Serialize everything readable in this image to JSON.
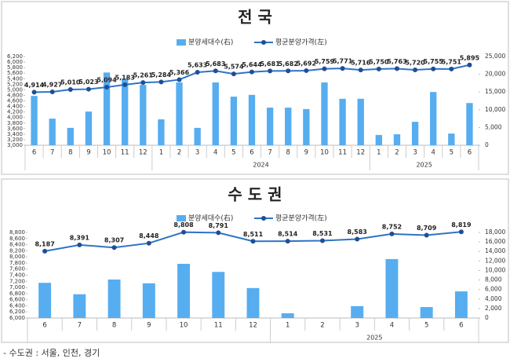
{
  "chart_data": [
    {
      "type": "combo",
      "title": "전 국",
      "categories": [
        "6",
        "7",
        "8",
        "9",
        "10",
        "11",
        "12",
        "1",
        "2",
        "3",
        "4",
        "5",
        "6",
        "7",
        "8",
        "9",
        "10",
        "11",
        "12",
        "1",
        "2",
        "3",
        "4",
        "5",
        "6"
      ],
      "x_group": [
        null,
        null,
        null,
        null,
        null,
        null,
        null,
        "2024",
        "2024",
        "2024",
        "2024",
        "2024",
        "2024",
        "2024",
        "2024",
        "2024",
        "2024",
        "2024",
        "2024",
        "2025",
        "2025",
        "2025",
        "2025",
        "2025",
        "2025"
      ],
      "series": [
        {
          "name": "분양세대수(右)",
          "type": "bar",
          "axis": "y2",
          "color": "#56adf0",
          "values": [
            13900,
            7500,
            4900,
            9500,
            20500,
            18800,
            17000,
            7300,
            17700,
            4900,
            17700,
            13700,
            14200,
            10600,
            10600,
            10200,
            17700,
            13100,
            13100,
            2900,
            3100,
            6600,
            15000,
            3300,
            11900
          ]
        },
        {
          "name": "평균분양가격(左)",
          "type": "line",
          "color": "#2e74c6",
          "marker_color": "#1f4e96",
          "values": [
            4914,
            4927,
            5010,
            5023,
            5094,
            5183,
            5261,
            5284,
            5366,
            5633,
            5683,
            5574,
            5644,
            5681,
            5682,
            5692,
            5759,
            5771,
            5716,
            5750,
            5763,
            5720,
            5755,
            5751,
            5895
          ],
          "value_labels": [
            "4,914",
            "4,927",
            "5,010",
            "5,023",
            "5,094",
            "5,183",
            "5,261",
            "5,284",
            "5,366",
            "5,633",
            "5,683",
            "5,574",
            "5,644",
            "5,681",
            "5,682",
            "5,692",
            "5,759",
            "5,771",
            "5,716",
            "5,750",
            "5,763",
            "5,720",
            "5,755",
            "5,751",
            "5,895"
          ]
        }
      ],
      "ylim": [
        3000,
        6200
      ],
      "yticks": [
        {
          "value": 3000,
          "label": "3,000"
        },
        {
          "value": 3200,
          "label": "3,200"
        },
        {
          "value": 3400,
          "label": "3,400"
        },
        {
          "value": 3600,
          "label": "3,600"
        },
        {
          "value": 3800,
          "label": "3,800"
        },
        {
          "value": 4000,
          "label": "4,000"
        },
        {
          "value": 4200,
          "label": "4,200"
        },
        {
          "value": 4400,
          "label": "4,400"
        },
        {
          "value": 4600,
          "label": "4,600"
        },
        {
          "value": 4800,
          "label": "4,800"
        },
        {
          "value": 5000,
          "label": "5,000"
        },
        {
          "value": 5200,
          "label": "5,200"
        },
        {
          "value": 5400,
          "label": "5,400"
        },
        {
          "value": 5600,
          "label": "5,600"
        },
        {
          "value": 5800,
          "label": "5,800"
        },
        {
          "value": 6000,
          "label": "6,000"
        },
        {
          "value": 6200,
          "label": "6,200"
        }
      ],
      "y2lim": [
        0,
        25000
      ],
      "y2ticks": [
        0,
        {
          "value": 5000,
          "label": "5,000"
        },
        {
          "value": 10000,
          "label": "10,000"
        },
        {
          "value": 15000,
          "label": "15,000"
        },
        {
          "value": 20000,
          "label": "20,000"
        },
        {
          "value": 25000,
          "label": "25,000"
        }
      ]
    },
    {
      "type": "combo",
      "title": "수 도 권",
      "categories": [
        "6",
        "7",
        "8",
        "9",
        "10",
        "11",
        "12",
        "1",
        "2",
        "3",
        "4",
        "5",
        "6"
      ],
      "x_group": [
        null,
        null,
        null,
        null,
        null,
        null,
        null,
        "2025",
        "2025",
        "2025",
        "2025",
        "2025",
        "2025"
      ],
      "series": [
        {
          "name": "분양세대수(右)",
          "type": "bar",
          "axis": "y2",
          "color": "#56adf0",
          "values": [
            7400,
            5000,
            8100,
            7300,
            11400,
            9700,
            6300,
            1000,
            0,
            2500,
            12400,
            2300,
            5600
          ]
        },
        {
          "name": "평균분양가격(左)",
          "type": "line",
          "color": "#2e74c6",
          "marker_color": "#1f4e96",
          "values": [
            8187,
            8391,
            8307,
            8448,
            8808,
            8791,
            8511,
            8514,
            8531,
            8583,
            8752,
            8709,
            8819
          ],
          "value_labels": [
            "8,187",
            "8,391",
            "8,307",
            "8,448",
            "8,808",
            "8,791",
            "8,511",
            "8,514",
            "8,531",
            "8,583",
            "8,752",
            "8,709",
            "8,819"
          ]
        }
      ],
      "ylim": [
        6000,
        8800
      ],
      "yticks": [
        {
          "value": 6000,
          "label": "6,000"
        },
        {
          "value": 6200,
          "label": "6,200"
        },
        {
          "value": 6400,
          "label": "6,400"
        },
        {
          "value": 6600,
          "label": "6,600"
        },
        {
          "value": 6800,
          "label": "6,800"
        },
        {
          "value": 7000,
          "label": "7,000"
        },
        {
          "value": 7200,
          "label": "7,200"
        },
        {
          "value": 7400,
          "label": "7,400"
        },
        {
          "value": 7600,
          "label": "7,600"
        },
        {
          "value": 7800,
          "label": "7,800"
        },
        {
          "value": 8000,
          "label": "8,000"
        },
        {
          "value": 8200,
          "label": "8,200"
        },
        {
          "value": 8400,
          "label": "8,400"
        },
        {
          "value": 8600,
          "label": "8,600"
        },
        {
          "value": 8800,
          "label": "8,800"
        }
      ],
      "y2lim": [
        0,
        18000
      ],
      "y2ticks": [
        0,
        {
          "value": 2000,
          "label": "2,000"
        },
        {
          "value": 4000,
          "label": "4,000"
        },
        {
          "value": 6000,
          "label": "6,000"
        },
        {
          "value": 8000,
          "label": "8,000"
        },
        {
          "value": 10000,
          "label": "10,000"
        },
        {
          "value": 12000,
          "label": "12,000"
        },
        {
          "value": 14000,
          "label": "14,000"
        },
        {
          "value": 16000,
          "label": "16,000"
        },
        {
          "value": 18000,
          "label": "18,000"
        }
      ]
    }
  ],
  "note": "- 수도권 : 서울, 인천, 경기"
}
